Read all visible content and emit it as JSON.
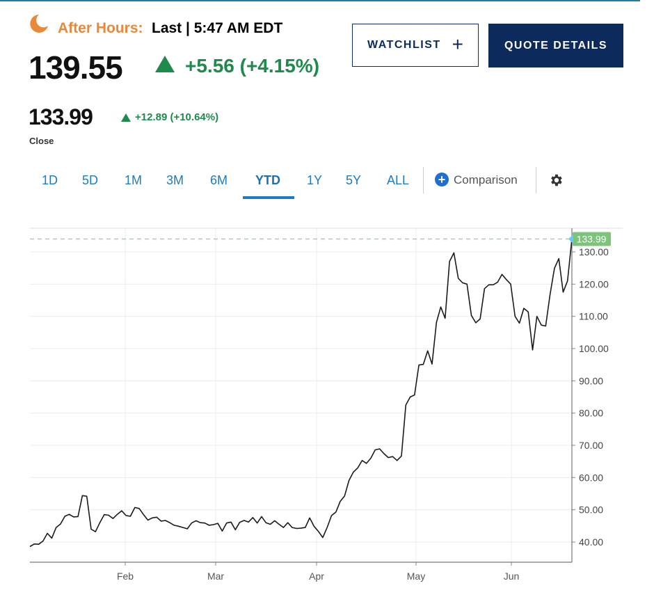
{
  "header": {
    "after_hours_label": "After Hours:",
    "after_hours_time": "Last | 5:47 AM EDT",
    "last_price": "139.55",
    "change": "+5.56 (+4.15%)",
    "watchlist_label": "WATCHLIST",
    "quote_details_label": "QUOTE DETAILS",
    "close_price": "133.99",
    "close_change": "+12.89 (+10.64%)",
    "close_label": "Close"
  },
  "tabs": [
    {
      "label": "1D"
    },
    {
      "label": "5D"
    },
    {
      "label": "1M"
    },
    {
      "label": "3M"
    },
    {
      "label": "6M"
    },
    {
      "label": "YTD",
      "active": true
    },
    {
      "label": "1Y"
    },
    {
      "label": "5Y"
    },
    {
      "label": "ALL"
    }
  ],
  "comparison_label": "Comparison",
  "icons": [
    "moon-icon",
    "up-triangle-icon",
    "plus-icon",
    "gear-icon"
  ],
  "colors": {
    "accent_orange": "#e8893a",
    "positive_green": "#1e8a4c",
    "navy": "#0c2a5b",
    "tab_blue": "#1f7ac1",
    "last_price_badge": "#7cc47a",
    "last_price_marker": "#6fc7f0"
  },
  "chart_data": {
    "type": "line",
    "title": "",
    "xlabel": "",
    "ylabel": "",
    "x_ticks": [
      "Feb",
      "Mar",
      "Apr",
      "May",
      "Jun"
    ],
    "y_ticks": [
      "40.00",
      "50.00",
      "60.00",
      "70.00",
      "80.00",
      "90.00",
      "100.00",
      "110.00",
      "120.00",
      "130.00"
    ],
    "ylim": [
      34,
      141
    ],
    "y_axis_side": "right",
    "grid": true,
    "last_value_label": "133.99",
    "last_value": 133.99,
    "series": [
      {
        "values": [
          38.6,
          39.4,
          39.3,
          40.3,
          42.7,
          41.2,
          44.5,
          45.6,
          48.0,
          48.6,
          47.8,
          47.9,
          54.4,
          54.2,
          44.0,
          43.2,
          46.0,
          48.5,
          48.3,
          47.3,
          48.6,
          49.7,
          48.2,
          48.0,
          50.7,
          50.4,
          48.5,
          46.8,
          47.5,
          47.7,
          46.5,
          46.7,
          46.0,
          45.2,
          44.9,
          44.5,
          44.1,
          45.9,
          46.6,
          46.0,
          45.9,
          45.2,
          45.4,
          45.8,
          43.4,
          45.9,
          46.2,
          43.8,
          46.1,
          46.7,
          46.2,
          47.6,
          45.9,
          47.9,
          46.0,
          45.5,
          46.6,
          45.5,
          44.5,
          46.0,
          44.5,
          44.2,
          44.3,
          44.5,
          47.5,
          44.9,
          43.3,
          41.4,
          44.5,
          48.2,
          49.3,
          52.6,
          54.3,
          59.1,
          61.7,
          63.0,
          65.3,
          64.4,
          66.0,
          68.6,
          68.9,
          67.4,
          66.2,
          66.5,
          65.3,
          66.7,
          82.5,
          85.0,
          85.6,
          94.9,
          95.1,
          99.3,
          95.2,
          108.1,
          112.9,
          109.4,
          127.0,
          129.7,
          121.8,
          120.4,
          120.0,
          110.3,
          108.0,
          109.2,
          118.6,
          119.8,
          119.8,
          120.6,
          123.0,
          121.4,
          120.0,
          110.0,
          107.9,
          112.5,
          111.4,
          99.6,
          110.0,
          107.3,
          107.0,
          116.8,
          124.9,
          127.9,
          117.5,
          121.0,
          133.99
        ]
      }
    ]
  }
}
